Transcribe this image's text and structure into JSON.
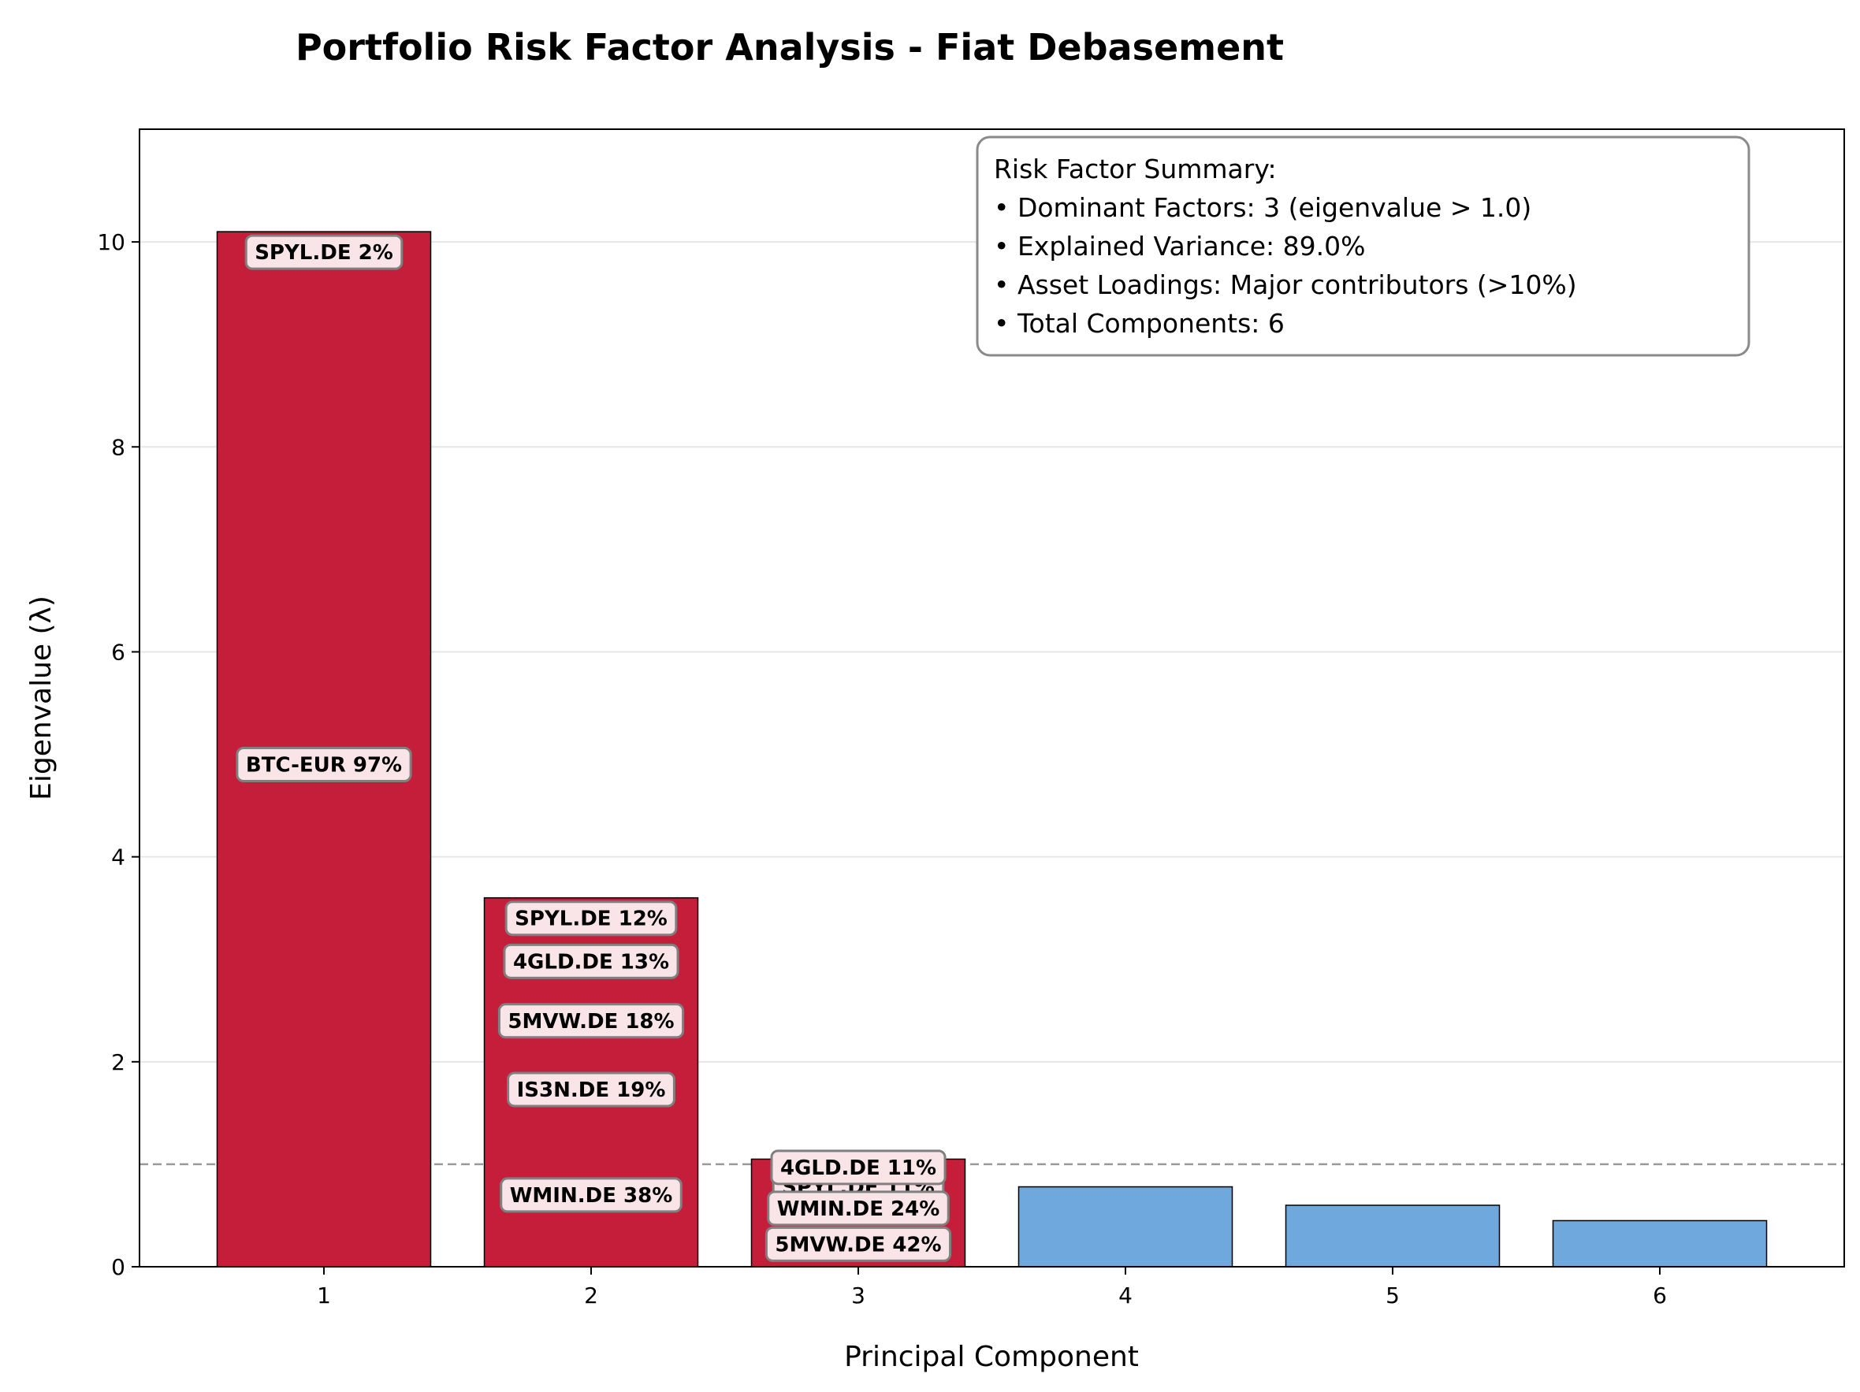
{
  "chart_data": {
    "type": "bar",
    "title": "Portfolio Risk Factor Analysis - Fiat Debasement",
    "xlabel": "Principal Component",
    "ylabel": "Eigenvalue (λ)",
    "categories": [
      "1",
      "2",
      "3",
      "4",
      "5",
      "6"
    ],
    "values": [
      10.1,
      3.6,
      1.05,
      0.78,
      0.6,
      0.45
    ],
    "ylim": [
      0,
      11.1
    ],
    "yticks": [
      "0",
      "2",
      "4",
      "6",
      "8",
      "10"
    ],
    "grid": "horizontal",
    "threshold": {
      "value": 1.0,
      "style": "dashed"
    },
    "colors": {
      "dominant": "#c41e3a",
      "minor": "#6fa8dc",
      "threshold_line": "#999999",
      "label_box_fill": "#f9e4e7",
      "label_box_edge": "#808080"
    },
    "loading_labels": [
      {
        "component": "1",
        "text": "SPYL.DE 2%",
        "y": 9.9
      },
      {
        "component": "1",
        "text": "BTC-EUR 97%",
        "y": 4.9
      },
      {
        "component": "2",
        "text": "SPYL.DE 12%",
        "y": 3.4
      },
      {
        "component": "2",
        "text": "4GLD.DE 13%",
        "y": 2.98
      },
      {
        "component": "2",
        "text": "5MVW.DE 18%",
        "y": 2.4
      },
      {
        "component": "2",
        "text": "IS3N.DE 19%",
        "y": 1.73
      },
      {
        "component": "2",
        "text": "WMIN.DE 38%",
        "y": 0.7
      },
      {
        "component": "3",
        "text": "SPYL.DE 11%",
        "y": 0.78
      },
      {
        "component": "3",
        "text": "WMIN.DE 24%",
        "y": 0.57
      },
      {
        "component": "3",
        "text": "4GLD.DE 11%",
        "y": 0.97
      },
      {
        "component": "3",
        "text": "5MVW.DE 42%",
        "y": 0.22
      }
    ],
    "summary": {
      "heading": "Risk Factor Summary:",
      "lines": [
        "• Dominant Factors: 3 (eigenvalue > 1.0)",
        "• Explained Variance: 89.0%",
        "• Asset Loadings: Major contributors (>10%)",
        "• Total Components: 6"
      ]
    }
  }
}
